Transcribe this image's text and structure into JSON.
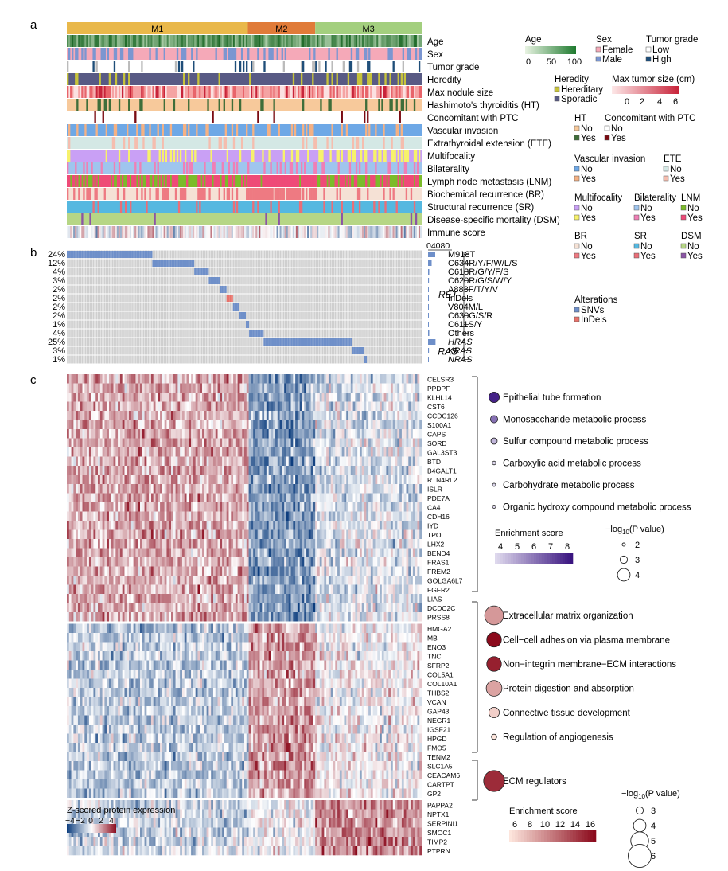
{
  "panels": {
    "a": "a",
    "b": "b",
    "c": "c"
  },
  "clusters": [
    {
      "label": "M1",
      "color": "#e9b84a",
      "fraction": 0.51
    },
    {
      "label": "M2",
      "color": "#e07b39",
      "fraction": 0.19
    },
    {
      "label": "M3",
      "color": "#a3cf7e",
      "fraction": 0.3
    }
  ],
  "tracks": [
    {
      "label": "Age",
      "type": "age"
    },
    {
      "label": "Sex",
      "colors": [
        "#f5a9b8",
        "#7b96d1"
      ],
      "weights": [
        0.72,
        0.28
      ]
    },
    {
      "label": "Tumor grade",
      "colors": [
        "#ffffff",
        "#1f4e79",
        "#bbbbbb"
      ],
      "weights": [
        0.85,
        0.08,
        0.07
      ]
    },
    {
      "label": "Heredity",
      "colors": [
        "#585a84",
        "#c7c33b"
      ],
      "weights": [
        0.88,
        0.12
      ]
    },
    {
      "label": "Max nodule size",
      "colors": [
        "#fbe1e1",
        "#f5a3a3",
        "#e8646a",
        "#c8243a"
      ],
      "weights": [
        0.3,
        0.35,
        0.25,
        0.1
      ]
    },
    {
      "label": "Hashimoto's thyroiditis (HT)",
      "colors": [
        "#f7c99b",
        "#3f6e3a"
      ],
      "weights": [
        0.85,
        0.15
      ]
    },
    {
      "label": "Concomitant with PTC",
      "colors": [
        "#ffffff",
        "#7a0b12"
      ],
      "weights": [
        0.95,
        0.05
      ]
    },
    {
      "label": "Vascular invasion",
      "colors": [
        "#6ea8e6",
        "#f5b183"
      ],
      "weights": [
        0.82,
        0.18
      ]
    },
    {
      "label": "Extrathyroidal extension (ETE)",
      "colors": [
        "#d4e8e5",
        "#f5bdae"
      ],
      "weights": [
        0.85,
        0.15
      ]
    },
    {
      "label": "Multifocality",
      "colors": [
        "#c9a0f5",
        "#f7f26b"
      ],
      "weights": [
        0.78,
        0.22
      ]
    },
    {
      "label": "Bilaterality",
      "colors": [
        "#9fc5ee",
        "#f07fb6"
      ],
      "weights": [
        0.8,
        0.2
      ]
    },
    {
      "label": "Lymph node metastasis (LNM)",
      "colors": [
        "#7bbb2a",
        "#ef4a78"
      ],
      "weights": [
        0.55,
        0.45
      ]
    },
    {
      "label": "Biochemical recurrence (BR)",
      "colors": [
        "#f5e1d5",
        "#ee7a82"
      ],
      "weights": [
        0.7,
        0.3
      ]
    },
    {
      "label": "Structural recurrence (SR)",
      "colors": [
        "#55b8e0",
        "#ea6e78"
      ],
      "weights": [
        0.88,
        0.12
      ]
    },
    {
      "label": "Disease-specific mortality (DSM)",
      "colors": [
        "#b6d685",
        "#8b55a5"
      ],
      "weights": [
        0.96,
        0.04
      ]
    },
    {
      "label": "Immune score",
      "type": "immune"
    }
  ],
  "legends": {
    "age": {
      "title": "Age",
      "ticks": [
        "0",
        "50",
        "100"
      ],
      "color_low": "#e8f3e2",
      "color_high": "#1e7a2e"
    },
    "sex": {
      "title": "Sex",
      "items": [
        {
          "label": "Female",
          "color": "#f5a9b8"
        },
        {
          "label": "Male",
          "color": "#7b96d1"
        }
      ]
    },
    "grade": {
      "title": "Tumor grade",
      "items": [
        {
          "label": "Low",
          "color": "#ffffff"
        },
        {
          "label": "High",
          "color": "#1f4e79"
        }
      ]
    },
    "heredity": {
      "title": "Heredity",
      "items": [
        {
          "label": "Hereditary",
          "color": "#c7c33b"
        },
        {
          "label": "Sporadic",
          "color": "#585a84"
        }
      ]
    },
    "size": {
      "title": "Max tumor size (cm)",
      "ticks": [
        "0",
        "2",
        "4",
        "6"
      ],
      "color_low": "#fde8e8",
      "color_high": "#c8243a"
    },
    "ht": {
      "title": "HT",
      "items": [
        {
          "label": "No",
          "color": "#f7c99b"
        },
        {
          "label": "Yes",
          "color": "#3f6e3a"
        }
      ]
    },
    "ptc": {
      "title": "Concomitant with PTC",
      "items": [
        {
          "label": "No",
          "color": "#ffffff"
        },
        {
          "label": "Yes",
          "color": "#7a0b12"
        }
      ]
    },
    "vi": {
      "title": "Vascular invasion",
      "items": [
        {
          "label": "No",
          "color": "#6ea8e6"
        },
        {
          "label": "Yes",
          "color": "#f5b183"
        }
      ]
    },
    "ete": {
      "title": "ETE",
      "items": [
        {
          "label": "No",
          "color": "#d4e8e5"
        },
        {
          "label": "Yes",
          "color": "#f5bdae"
        }
      ]
    },
    "multi": {
      "title": "Multifocality",
      "items": [
        {
          "label": "No",
          "color": "#c9a0f5"
        },
        {
          "label": "Yes",
          "color": "#f7f26b"
        }
      ]
    },
    "bilat": {
      "title": "Bilaterality",
      "items": [
        {
          "label": "No",
          "color": "#9fc5ee"
        },
        {
          "label": "Yes",
          "color": "#f07fb6"
        }
      ]
    },
    "lnm": {
      "title": "LNM",
      "items": [
        {
          "label": "No",
          "color": "#7bbb2a"
        },
        {
          "label": "Yes",
          "color": "#ef4a78"
        }
      ]
    },
    "br": {
      "title": "BR",
      "items": [
        {
          "label": "No",
          "color": "#f5e1d5"
        },
        {
          "label": "Yes",
          "color": "#ee7a82"
        }
      ]
    },
    "sr": {
      "title": "SR",
      "items": [
        {
          "label": "No",
          "color": "#55b8e0"
        },
        {
          "label": "Yes",
          "color": "#ea6e78"
        }
      ]
    },
    "dsm": {
      "title": "DSM",
      "items": [
        {
          "label": "No",
          "color": "#b6d685"
        },
        {
          "label": "Yes",
          "color": "#8b55a5"
        }
      ]
    },
    "alterations": {
      "title": "Alterations",
      "items": [
        {
          "label": "SNVs",
          "color": "#6e8fc9"
        },
        {
          "label": "InDels",
          "color": "#e8726a"
        }
      ]
    }
  },
  "mutations": {
    "bar_axis_ticks": [
      "0",
      "40",
      "80"
    ],
    "rows": [
      {
        "pct_label": "24%",
        "value": 24,
        "name": "M918T",
        "italic": false
      },
      {
        "pct_label": "12%",
        "value": 12,
        "name": "C634R/Y/F/W/L/S",
        "italic": false
      },
      {
        "pct_label": "4%",
        "value": 4,
        "name": "C618R/G/Y/F/S",
        "italic": false
      },
      {
        "pct_label": "3%",
        "value": 3,
        "name": "C620R/G/S/W/Y",
        "italic": false
      },
      {
        "pct_label": "2%",
        "value": 2,
        "name": "A883F/T/Y/V",
        "italic": false
      },
      {
        "pct_label": "2%",
        "value": 2,
        "name": "InDels",
        "italic": false
      },
      {
        "pct_label": "2%",
        "value": 2,
        "name": "V804M/L",
        "italic": false
      },
      {
        "pct_label": "2%",
        "value": 2,
        "name": "C630G/S/R",
        "italic": false
      },
      {
        "pct_label": "1%",
        "value": 1,
        "name": "C611S/Y",
        "italic": false
      },
      {
        "pct_label": "4%",
        "value": 4,
        "name": "Others",
        "italic": false
      },
      {
        "pct_label": "25%",
        "value": 25,
        "name": "HRAS",
        "italic": true
      },
      {
        "pct_label": "3%",
        "value": 3,
        "name": "KRAS",
        "italic": true
      },
      {
        "pct_label": "1%",
        "value": 1,
        "name": "NRAS",
        "italic": true
      }
    ],
    "groups": [
      {
        "label": "RET",
        "first": 0,
        "last": 9
      },
      {
        "label": "RAS",
        "first": 10,
        "last": 12
      }
    ]
  },
  "heatmap": {
    "legend_title": "Z-scored protein expression",
    "legend_ticks": [
      "−4",
      "−2",
      "0",
      "2",
      "4"
    ],
    "blocks": [
      {
        "pattern": "high_M1",
        "genes": [
          "CELSR3",
          "PPDPF",
          "KLHL14",
          "CST6",
          "CCDC126",
          "S100A1",
          "CAPS",
          "SORD",
          "GAL3ST3",
          "BTD",
          "B4GALT1",
          "RTN4RL2",
          "ISLR",
          "PDE7A",
          "CA4",
          "CDH16",
          "IYD",
          "TPO",
          "LHX2",
          "BEND4",
          "FRAS1",
          "FREM2",
          "GOLGA6L7",
          "FGFR2",
          "LIAS",
          "DCDC2C",
          "PRSS8"
        ]
      },
      {
        "pattern": "high_M2",
        "genes": [
          "HMGA2",
          "MB",
          "ENO3",
          "TNC",
          "SFRP2",
          "COL5A1",
          "COL10A1",
          "THBS2",
          "VCAN",
          "GAP43",
          "NEGR1",
          "IGSF21",
          "HPGD",
          "FMO5",
          "TENM2",
          "SLC1A5",
          "CEACAM6",
          "CARTPT",
          "GP2"
        ]
      },
      {
        "pattern": "high_M3",
        "genes": [
          "PAPPA2",
          "NPTX1",
          "SERPINI1",
          "SMOC1",
          "TIMP2",
          "PTPRN"
        ]
      }
    ]
  },
  "enrichment": {
    "block1_terms": [
      {
        "term": "Epithelial tube formation",
        "score": 8.2,
        "neglog10p": 3.6
      },
      {
        "term": "Monosaccharide metabolic process",
        "score": 6.4,
        "neglog10p": 3.0
      },
      {
        "term": "Sulfur compound metabolic process",
        "score": 4.8,
        "neglog10p": 2.8
      },
      {
        "term": "Carboxylic acid metabolic process",
        "score": 4.0,
        "neglog10p": 2.3
      },
      {
        "term": "Carbohydrate metabolic process",
        "score": 4.0,
        "neglog10p": 2.2
      },
      {
        "term": "Organic hydroxy compound metabolic process",
        "score": 4.0,
        "neglog10p": 2.0
      }
    ],
    "block2_terms": [
      {
        "term": "Extracellular matrix organization",
        "score": 9.5,
        "neglog10p": 5.2
      },
      {
        "term": "Cell−cell adhesion via plasma membrane",
        "score": 16.0,
        "neglog10p": 4.4
      },
      {
        "term": "Non−integrin membrane−ECM interactions",
        "score": 15.0,
        "neglog10p": 4.4
      },
      {
        "term": "Protein digestion and absorption",
        "score": 9.0,
        "neglog10p": 4.6
      },
      {
        "term": "Connective tissue development",
        "score": 7.0,
        "neglog10p": 3.6
      },
      {
        "term": "Regulation of angiogenesis",
        "score": 6.0,
        "neglog10p": 2.6
      }
    ],
    "block3_terms": [
      {
        "term": "ECM regulators",
        "score": 14.5,
        "neglog10p": 5.6
      }
    ],
    "legend1": {
      "score_title": "Enrichment score",
      "score_ticks": [
        "4",
        "5",
        "6",
        "7",
        "8"
      ],
      "p_title_prefix": "−log",
      "p_title_sub": "10",
      "p_title_suffix": "(P value)",
      "p_ticks": [
        "2",
        "3",
        "4"
      ]
    },
    "legend2": {
      "score_title": "Enrichment score",
      "score_ticks": [
        "6",
        "8",
        "10",
        "12",
        "14",
        "16"
      ],
      "p_title_prefix": "−log",
      "p_title_sub": "10",
      "p_title_suffix": "(P value)",
      "p_ticks": [
        "3",
        "4",
        "5",
        "6"
      ]
    }
  }
}
